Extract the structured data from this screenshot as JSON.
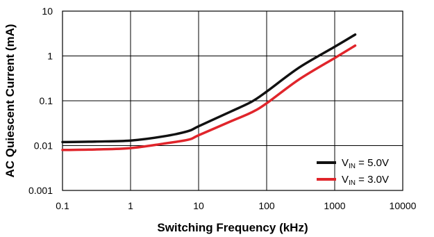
{
  "chart_data": {
    "type": "line",
    "title": "",
    "xlabel": "Switching Frequency (kHz)",
    "ylabel": "AC Quiescent Current (mA)",
    "x_scale": "log",
    "y_scale": "log",
    "xlim": [
      0.1,
      10000
    ],
    "ylim": [
      0.001,
      10
    ],
    "x_ticks": [
      "0.1",
      "1",
      "10",
      "100",
      "1000",
      "10000"
    ],
    "y_ticks": [
      "0.001",
      "0.01",
      "0.1",
      "1",
      "10"
    ],
    "grid": true,
    "legend_position": "bottom-right",
    "series": [
      {
        "name": "V_IN = 5.0V",
        "label_main": "V",
        "label_sub": "IN",
        "label_rest": " = 5.0V",
        "color": "#111111",
        "points": [
          [
            0.1,
            0.012
          ],
          [
            0.3,
            0.0123
          ],
          [
            1,
            0.013
          ],
          [
            3,
            0.016
          ],
          [
            7,
            0.021
          ],
          [
            10,
            0.027
          ],
          [
            30,
            0.058
          ],
          [
            60,
            0.095
          ],
          [
            100,
            0.16
          ],
          [
            300,
            0.55
          ],
          [
            1000,
            1.6
          ],
          [
            2000,
            3.0
          ]
        ]
      },
      {
        "name": "V_IN = 3.0V",
        "label_main": "V",
        "label_sub": "IN",
        "label_rest": " = 3.0V",
        "color": "#e0252b",
        "points": [
          [
            0.1,
            0.008
          ],
          [
            0.3,
            0.0082
          ],
          [
            1,
            0.0088
          ],
          [
            3,
            0.011
          ],
          [
            7,
            0.0135
          ],
          [
            10,
            0.017
          ],
          [
            30,
            0.035
          ],
          [
            60,
            0.055
          ],
          [
            100,
            0.088
          ],
          [
            300,
            0.3
          ],
          [
            1000,
            0.9
          ],
          [
            2000,
            1.7
          ]
        ]
      }
    ]
  }
}
